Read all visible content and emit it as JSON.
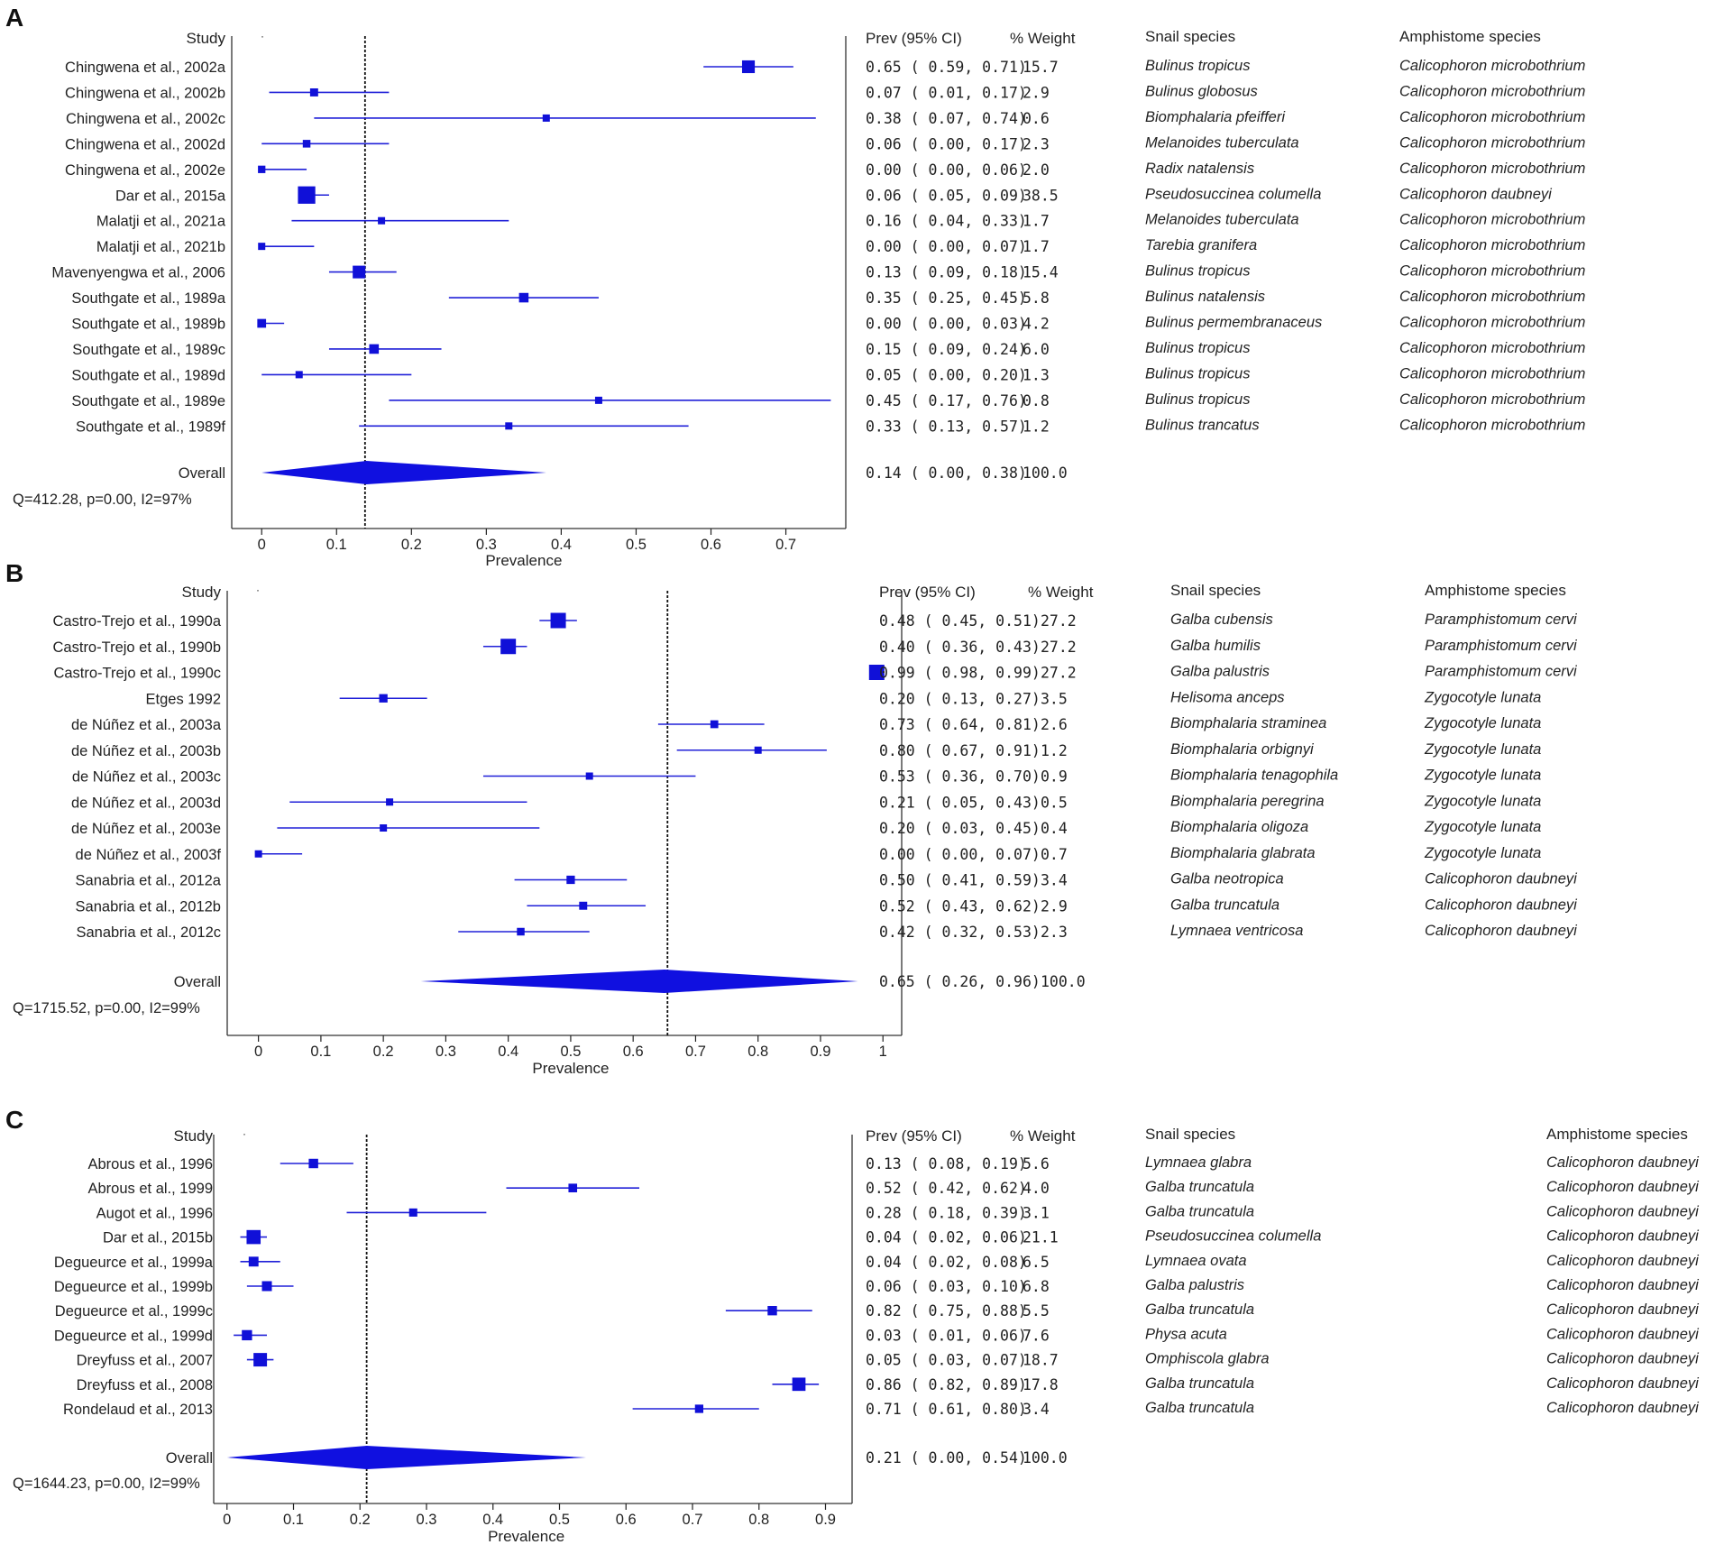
{
  "colors": {
    "marker": "#1010d8",
    "ci": "#2020d8",
    "diamond": "#1010e0",
    "axis": "#222222",
    "frame": "#333333"
  },
  "chart_data": [
    {
      "type": "forest",
      "panel": "A",
      "xlabel": "Prevalence",
      "xlim": [
        -0.04,
        0.78
      ],
      "xticks": [
        0,
        0.1,
        0.2,
        0.3,
        0.4,
        0.5,
        0.6,
        0.7
      ],
      "xtick_labels": [
        "0",
        "0.1",
        "0.2",
        "0.3",
        "0.4",
        "0.5",
        "0.6",
        "0.7"
      ],
      "overall_line": 0.138,
      "headers": {
        "study": "Study",
        "ci": "Prev (95% CI)",
        "weight": "% Weight",
        "snail": "Snail species",
        "amph": "Amphistome species"
      },
      "studies": [
        {
          "study": "Chingwena et al., 2002a",
          "est": 0.65,
          "lo": 0.59,
          "hi": 0.71,
          "ci_text": "0.65  ( 0.59,  0.71)",
          "weight": 15.7,
          "weight_text": "15.7",
          "snail": "Bulinus tropicus",
          "amph": "Calicophoron microbothrium"
        },
        {
          "study": "Chingwena et al., 2002b",
          "est": 0.07,
          "lo": 0.01,
          "hi": 0.17,
          "ci_text": "0.07  ( 0.01,  0.17)",
          "weight": 2.9,
          "weight_text": "2.9",
          "snail": "Bulinus globosus",
          "amph": "Calicophoron microbothrium"
        },
        {
          "study": "Chingwena et al., 2002c",
          "est": 0.38,
          "lo": 0.07,
          "hi": 0.74,
          "ci_text": "0.38  ( 0.07,  0.74)",
          "weight": 0.6,
          "weight_text": "0.6",
          "snail": "Biomphalaria pfeifferi",
          "amph": "Calicophoron microbothrium"
        },
        {
          "study": "Chingwena et al., 2002d",
          "est": 0.06,
          "lo": 0.0,
          "hi": 0.17,
          "ci_text": "0.06  ( 0.00,  0.17)",
          "weight": 2.3,
          "weight_text": "2.3",
          "snail": "Melanoides tuberculata",
          "amph": "Calicophoron microbothrium"
        },
        {
          "study": "Chingwena et al., 2002e",
          "est": 0.0,
          "lo": 0.0,
          "hi": 0.06,
          "ci_text": "0.00  ( 0.00,  0.06)",
          "weight": 2.0,
          "weight_text": "2.0",
          "snail": "Radix natalensis",
          "amph": "Calicophoron microbothrium"
        },
        {
          "study": "Dar et al., 2015a",
          "est": 0.06,
          "lo": 0.05,
          "hi": 0.09,
          "ci_text": "0.06  ( 0.05,  0.09)",
          "weight": 38.5,
          "weight_text": "38.5",
          "snail": "Pseudosuccinea columella",
          "amph": "Calicophoron daubneyi"
        },
        {
          "study": "Malatji et al., 2021a",
          "est": 0.16,
          "lo": 0.04,
          "hi": 0.33,
          "ci_text": "0.16  ( 0.04,  0.33)",
          "weight": 1.7,
          "weight_text": "1.7",
          "snail": "Melanoides tuberculata",
          "amph": "Calicophoron microbothrium"
        },
        {
          "study": "Malatji et al., 2021b",
          "est": 0.0,
          "lo": 0.0,
          "hi": 0.07,
          "ci_text": "0.00  ( 0.00,  0.07)",
          "weight": 1.7,
          "weight_text": "1.7",
          "snail": "Tarebia granifera",
          "amph": "Calicophoron microbothrium"
        },
        {
          "study": "Mavenyengwa et al., 2006",
          "est": 0.13,
          "lo": 0.09,
          "hi": 0.18,
          "ci_text": "0.13  ( 0.09,  0.18)",
          "weight": 15.4,
          "weight_text": "15.4",
          "snail": "Bulinus tropicus",
          "amph": "Calicophoron microbothrium"
        },
        {
          "study": "Southgate et al., 1989a",
          "est": 0.35,
          "lo": 0.25,
          "hi": 0.45,
          "ci_text": "0.35  ( 0.25,  0.45)",
          "weight": 5.8,
          "weight_text": "5.8",
          "snail": "Bulinus natalensis",
          "amph": "Calicophoron microbothrium"
        },
        {
          "study": "Southgate et al., 1989b",
          "est": 0.0,
          "lo": 0.0,
          "hi": 0.03,
          "ci_text": "0.00  ( 0.00,  0.03)",
          "weight": 4.2,
          "weight_text": "4.2",
          "snail": "Bulinus permembranaceus",
          "amph": "Calicophoron microbothrium"
        },
        {
          "study": "Southgate et al., 1989c",
          "est": 0.15,
          "lo": 0.09,
          "hi": 0.24,
          "ci_text": "0.15  ( 0.09,  0.24)",
          "weight": 6.0,
          "weight_text": "6.0",
          "snail": "Bulinus tropicus",
          "amph": "Calicophoron microbothrium"
        },
        {
          "study": "Southgate et al., 1989d",
          "est": 0.05,
          "lo": 0.0,
          "hi": 0.2,
          "ci_text": "0.05  ( 0.00,  0.20)",
          "weight": 1.3,
          "weight_text": "1.3",
          "snail": "Bulinus tropicus",
          "amph": "Calicophoron microbothrium"
        },
        {
          "study": "Southgate et al., 1989e",
          "est": 0.45,
          "lo": 0.17,
          "hi": 0.76,
          "ci_text": "0.45  ( 0.17,  0.76)",
          "weight": 0.8,
          "weight_text": "0.8",
          "snail": "Bulinus tropicus",
          "amph": "Calicophoron microbothrium"
        },
        {
          "study": "Southgate et al., 1989f",
          "est": 0.33,
          "lo": 0.13,
          "hi": 0.57,
          "ci_text": "0.33  ( 0.13,  0.57)",
          "weight": 1.2,
          "weight_text": "1.2",
          "snail": "Bulinus trancatus",
          "amph": "Calicophoron microbothrium"
        }
      ],
      "overall": {
        "label": "Overall",
        "est": 0.14,
        "lo": 0.0,
        "hi": 0.38,
        "ci_text": "0.14  ( 0.00,  0.38)",
        "weight_text": "100.0"
      },
      "heterogeneity": "Q=412.28, p=0.00, I2=97%"
    },
    {
      "type": "forest",
      "panel": "B",
      "xlabel": "Prevalence",
      "xlim": [
        -0.05,
        1.03
      ],
      "xticks": [
        0,
        0.1,
        0.2,
        0.3,
        0.4,
        0.5,
        0.6,
        0.7,
        0.8,
        0.9,
        1
      ],
      "xtick_labels": [
        "0",
        "0.1",
        "0.2",
        "0.3",
        "0.4",
        "0.5",
        "0.6",
        "0.7",
        "0.8",
        "0.9",
        "1"
      ],
      "overall_line": 0.655,
      "headers": {
        "study": "Study",
        "ci": "Prev (95% CI)",
        "weight": "% Weight",
        "snail": "Snail species",
        "amph": "Amphistome species"
      },
      "studies": [
        {
          "study": "Castro-Trejo et al., 1990a",
          "est": 0.48,
          "lo": 0.45,
          "hi": 0.51,
          "ci_text": "0.48  ( 0.45,  0.51)",
          "weight": 27.2,
          "weight_text": "27.2",
          "snail": "Galba cubensis",
          "amph": "Paramphistomum cervi"
        },
        {
          "study": "Castro-Trejo et al., 1990b",
          "est": 0.4,
          "lo": 0.36,
          "hi": 0.43,
          "ci_text": "0.40  ( 0.36,  0.43)",
          "weight": 27.2,
          "weight_text": "27.2",
          "snail": "Galba humilis",
          "amph": "Paramphistomum cervi"
        },
        {
          "study": "Castro-Trejo et al., 1990c",
          "est": 0.99,
          "lo": 0.98,
          "hi": 0.99,
          "ci_text": "0.99  ( 0.98,  0.99)",
          "weight": 27.2,
          "weight_text": "27.2",
          "snail": "Galba palustris",
          "amph": "Paramphistomum cervi"
        },
        {
          "study": "Etges 1992",
          "est": 0.2,
          "lo": 0.13,
          "hi": 0.27,
          "ci_text": "0.20  ( 0.13,  0.27)",
          "weight": 3.5,
          "weight_text": "3.5",
          "snail": "Helisoma anceps",
          "amph": "Zygocotyle lunata"
        },
        {
          "study": "de Núñez et al., 2003a",
          "est": 0.73,
          "lo": 0.64,
          "hi": 0.81,
          "ci_text": "0.73  ( 0.64,  0.81)",
          "weight": 2.6,
          "weight_text": "2.6",
          "snail": "Biomphalaria straminea",
          "amph": "Zygocotyle lunata"
        },
        {
          "study": "de Núñez et al., 2003b",
          "est": 0.8,
          "lo": 0.67,
          "hi": 0.91,
          "ci_text": "0.80  ( 0.67,  0.91)",
          "weight": 1.2,
          "weight_text": "1.2",
          "snail": "Biomphalaria orbignyi",
          "amph": "Zygocotyle lunata"
        },
        {
          "study": "de Núñez et al., 2003c",
          "est": 0.53,
          "lo": 0.36,
          "hi": 0.7,
          "ci_text": "0.53  ( 0.36,  0.70)",
          "weight": 0.9,
          "weight_text": "0.9",
          "snail": "Biomphalaria tenagophila",
          "amph": "Zygocotyle lunata"
        },
        {
          "study": "de Núñez et al., 2003d",
          "est": 0.21,
          "lo": 0.05,
          "hi": 0.43,
          "ci_text": "0.21  ( 0.05,  0.43)",
          "weight": 0.5,
          "weight_text": "0.5",
          "snail": "Biomphalaria peregrina",
          "amph": "Zygocotyle lunata"
        },
        {
          "study": "de Núñez et al., 2003e",
          "est": 0.2,
          "lo": 0.03,
          "hi": 0.45,
          "ci_text": "0.20  ( 0.03,  0.45)",
          "weight": 0.4,
          "weight_text": "0.4",
          "snail": "Biomphalaria oligoza",
          "amph": "Zygocotyle lunata"
        },
        {
          "study": "de Núñez et al., 2003f",
          "est": 0.0,
          "lo": 0.0,
          "hi": 0.07,
          "ci_text": "0.00  ( 0.00,  0.07)",
          "weight": 0.7,
          "weight_text": "0.7",
          "snail": "Biomphalaria glabrata",
          "amph": "Zygocotyle lunata"
        },
        {
          "study": "Sanabria et al., 2012a",
          "est": 0.5,
          "lo": 0.41,
          "hi": 0.59,
          "ci_text": "0.50  ( 0.41,  0.59)",
          "weight": 3.4,
          "weight_text": "3.4",
          "snail": "Galba neotropica",
          "amph": "Calicophoron daubneyi"
        },
        {
          "study": "Sanabria et al., 2012b",
          "est": 0.52,
          "lo": 0.43,
          "hi": 0.62,
          "ci_text": "0.52  ( 0.43,  0.62)",
          "weight": 2.9,
          "weight_text": "2.9",
          "snail": "Galba truncatula",
          "amph": "Calicophoron daubneyi"
        },
        {
          "study": "Sanabria et al., 2012c",
          "est": 0.42,
          "lo": 0.32,
          "hi": 0.53,
          "ci_text": "0.42  ( 0.32,  0.53)",
          "weight": 2.3,
          "weight_text": "2.3",
          "snail": "Lymnaea ventricosa",
          "amph": "Calicophoron daubneyi"
        }
      ],
      "overall": {
        "label": "Overall",
        "est": 0.65,
        "lo": 0.26,
        "hi": 0.96,
        "ci_text": "0.65  ( 0.26,  0.96)",
        "weight_text": "100.0"
      },
      "heterogeneity": "Q=1715.52, p=0.00, I2=99%"
    },
    {
      "type": "forest",
      "panel": "C",
      "xlabel": "Prevalence",
      "xlim": [
        -0.02,
        0.94
      ],
      "xticks": [
        0,
        0.1,
        0.2,
        0.3,
        0.4,
        0.5,
        0.6,
        0.7,
        0.8,
        0.9
      ],
      "xtick_labels": [
        "0",
        "0.1",
        "0.2",
        "0.3",
        "0.4",
        "0.5",
        "0.6",
        "0.7",
        "0.8",
        "0.9"
      ],
      "overall_line": 0.21,
      "headers": {
        "study": "Study",
        "ci": "Prev (95% CI)",
        "weight": "% Weight",
        "snail": "Snail species",
        "amph": "Amphistome species"
      },
      "studies": [
        {
          "study": "Abrous et al., 1996",
          "est": 0.13,
          "lo": 0.08,
          "hi": 0.19,
          "ci_text": "0.13  ( 0.08,  0.19)",
          "weight": 5.6,
          "weight_text": "5.6",
          "snail": "Lymnaea glabra",
          "amph": "Calicophoron daubneyi"
        },
        {
          "study": "Abrous et al., 1999",
          "est": 0.52,
          "lo": 0.42,
          "hi": 0.62,
          "ci_text": "0.52  ( 0.42,  0.62)",
          "weight": 4.0,
          "weight_text": "4.0",
          "snail": "Galba truncatula",
          "amph": "Calicophoron daubneyi"
        },
        {
          "study": "Augot et al., 1996",
          "est": 0.28,
          "lo": 0.18,
          "hi": 0.39,
          "ci_text": "0.28  ( 0.18,  0.39)",
          "weight": 3.1,
          "weight_text": "3.1",
          "snail": "Galba truncatula",
          "amph": "Calicophoron daubneyi"
        },
        {
          "study": "Dar et al., 2015b",
          "est": 0.04,
          "lo": 0.02,
          "hi": 0.06,
          "ci_text": "0.04  ( 0.02,  0.06)",
          "weight": 21.1,
          "weight_text": "21.1",
          "snail": "Pseudosuccinea columella",
          "amph": "Calicophoron daubneyi"
        },
        {
          "study": "Degueurce et al., 1999a",
          "est": 0.04,
          "lo": 0.02,
          "hi": 0.08,
          "ci_text": "0.04  ( 0.02,  0.08)",
          "weight": 6.5,
          "weight_text": "6.5",
          "snail": "Lymnaea ovata",
          "amph": "Calicophoron daubneyi"
        },
        {
          "study": "Degueurce et al., 1999b",
          "est": 0.06,
          "lo": 0.03,
          "hi": 0.1,
          "ci_text": "0.06  ( 0.03,  0.10)",
          "weight": 6.8,
          "weight_text": "6.8",
          "snail": "Galba palustris",
          "amph": "Calicophoron daubneyi"
        },
        {
          "study": "Degueurce et al., 1999c",
          "est": 0.82,
          "lo": 0.75,
          "hi": 0.88,
          "ci_text": "0.82  ( 0.75,  0.88)",
          "weight": 5.5,
          "weight_text": "5.5",
          "snail": "Galba truncatula",
          "amph": "Calicophoron daubneyi"
        },
        {
          "study": "Degueurce et al., 1999d",
          "est": 0.03,
          "lo": 0.01,
          "hi": 0.06,
          "ci_text": "0.03  ( 0.01,  0.06)",
          "weight": 7.6,
          "weight_text": "7.6",
          "snail": "Physa acuta",
          "amph": "Calicophoron daubneyi"
        },
        {
          "study": "Dreyfuss et al., 2007",
          "est": 0.05,
          "lo": 0.03,
          "hi": 0.07,
          "ci_text": "0.05  ( 0.03,  0.07)",
          "weight": 18.7,
          "weight_text": "18.7",
          "snail": "Omphiscola glabra",
          "amph": "Calicophoron daubneyi"
        },
        {
          "study": "Dreyfuss et al., 2008",
          "est": 0.86,
          "lo": 0.82,
          "hi": 0.89,
          "ci_text": "0.86  ( 0.82,  0.89)",
          "weight": 17.8,
          "weight_text": "17.8",
          "snail": "Galba truncatula",
          "amph": "Calicophoron daubneyi"
        },
        {
          "study": "Rondelaud et al.,  2013",
          "est": 0.71,
          "lo": 0.61,
          "hi": 0.8,
          "ci_text": "0.71  ( 0.61,  0.80)",
          "weight": 3.4,
          "weight_text": "3.4",
          "snail": "Galba truncatula",
          "amph": "Calicophoron daubneyi"
        }
      ],
      "overall": {
        "label": "Overall",
        "est": 0.21,
        "lo": 0.0,
        "hi": 0.54,
        "ci_text": "0.21  ( 0.00,  0.54)",
        "weight_text": "100.0"
      },
      "heterogeneity": "Q=1644.23, p=0.00, I2=99%"
    }
  ]
}
